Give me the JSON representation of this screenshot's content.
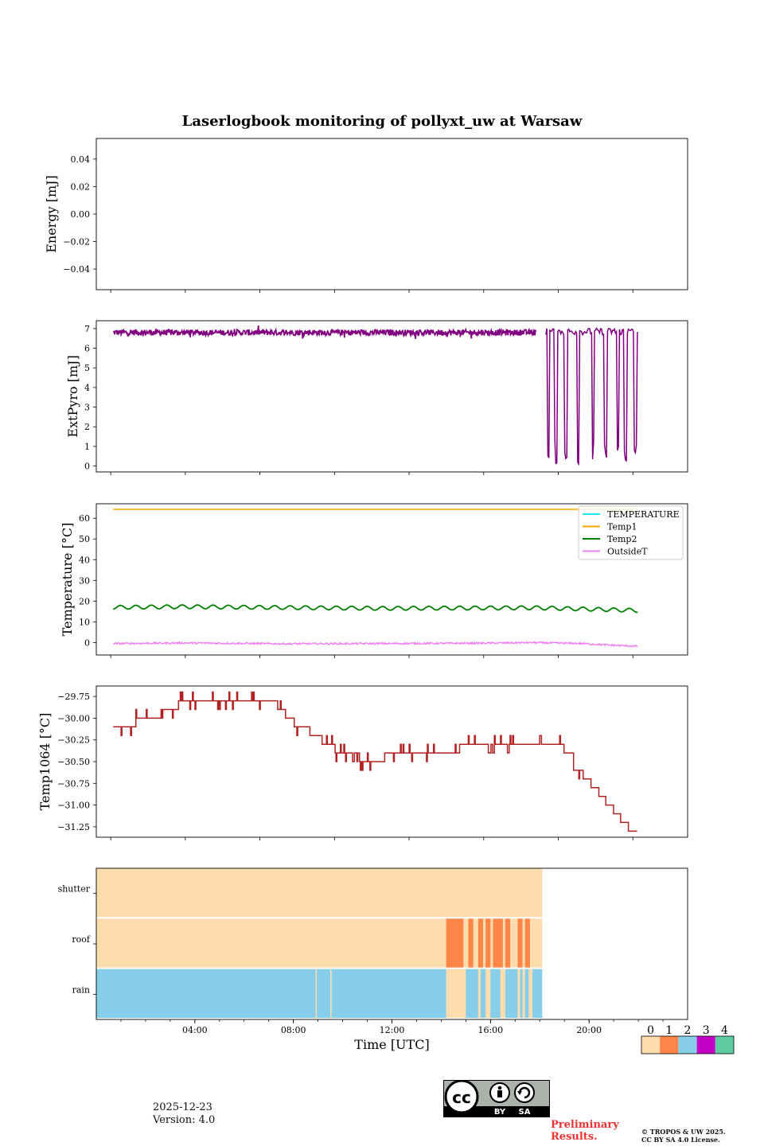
{
  "title": "Laserlogbook monitoring of pollyxt_uw at Warsaw",
  "chart_data": [
    {
      "type": "line",
      "name": "energy",
      "ylabel": "Energy [mJ]",
      "ylim": [
        -0.055,
        0.055
      ],
      "yticks": [
        0.04,
        0.02,
        0.0,
        -0.02,
        -0.04
      ],
      "ytick_labels": [
        "0.04",
        "0.02",
        "0.00",
        "−0.02",
        "−0.04"
      ],
      "series": []
    },
    {
      "type": "line",
      "name": "extpyro",
      "ylabel": "ExtPyro [mJ]",
      "ylim": [
        -0.3,
        7.4
      ],
      "yticks": [
        7,
        6,
        5,
        4,
        3,
        2,
        1,
        0
      ],
      "ytick_labels": [
        "7",
        "6",
        "5",
        "4",
        "3",
        "2",
        "1",
        "0"
      ],
      "series": [
        {
          "name": "ExtPyro",
          "color": "#800080",
          "x": [
            1.1,
            2.0,
            3.0,
            4.0,
            5.0,
            6.0,
            7.0,
            8.0,
            9.0,
            10.0,
            11.0,
            12.0,
            13.0,
            14.0,
            15.0,
            16.0,
            17.0,
            18.1
          ],
          "y": [
            6.8,
            6.8,
            6.8,
            6.8,
            6.7,
            6.8,
            6.8,
            6.8,
            6.8,
            6.8,
            6.8,
            6.8,
            6.8,
            6.8,
            6.8,
            6.8,
            6.8,
            6.8
          ],
          "dropouts": [
            18.6,
            18.9,
            19.3,
            19.8,
            20.4,
            20.9,
            21.4,
            21.7,
            22.1
          ],
          "x_end": 22.2
        }
      ]
    },
    {
      "type": "line",
      "name": "temperature",
      "ylabel": "Temperature [°C]",
      "ylim": [
        -6,
        67
      ],
      "yticks": [
        60,
        50,
        40,
        30,
        20,
        10,
        0
      ],
      "ytick_labels": [
        "60",
        "50",
        "40",
        "30",
        "20",
        "10",
        "0"
      ],
      "legend": "top-right",
      "series": [
        {
          "name": "TEMPERATURE",
          "color": "#22e5f0",
          "x": [],
          "y": []
        },
        {
          "name": "Temp1",
          "color": "#ffa500",
          "x": [
            1.1,
            22.2
          ],
          "y": [
            64.3,
            64.3
          ]
        },
        {
          "name": "Temp2",
          "color": "#008000",
          "x": [
            1.1,
            4.0,
            8.0,
            12.0,
            16.0,
            18.0,
            20.0,
            22.2
          ],
          "y": [
            17.0,
            17.3,
            16.9,
            16.5,
            16.7,
            16.8,
            16.2,
            15.5
          ]
        },
        {
          "name": "OutsideT",
          "color": "#ee82ee",
          "x": [
            1.1,
            4.0,
            8.0,
            12.0,
            16.0,
            18.0,
            20.0,
            21.0,
            22.2
          ],
          "y": [
            -0.5,
            -0.2,
            -0.6,
            -0.5,
            -0.3,
            0.0,
            -0.5,
            -1.2,
            -1.8
          ]
        }
      ]
    },
    {
      "type": "line",
      "name": "temp1064",
      "ylabel": "Temp1064 [°C]",
      "ylim": [
        -31.37,
        -29.63
      ],
      "yticks": [
        -29.75,
        -30.0,
        -30.25,
        -30.5,
        -30.75,
        -31.0,
        -31.25
      ],
      "ytick_labels": [
        "−29.75",
        "−30.00",
        "−30.25",
        "−30.50",
        "−30.75",
        "−31.00",
        "−31.25"
      ],
      "series": [
        {
          "name": "Temp1064",
          "color": "#b22222",
          "x": [
            1.1,
            1.5,
            2.0,
            2.5,
            3.0,
            3.7,
            4.5,
            5.5,
            6.5,
            7.3,
            7.7,
            8.0,
            8.4,
            9.0,
            9.5,
            10.0,
            11.0,
            12.0,
            13.0,
            14.0,
            15.0,
            15.8,
            16.5,
            17.5,
            18.5,
            19.2,
            19.6,
            20.0,
            20.3,
            20.6,
            20.9,
            21.2,
            21.5,
            21.8,
            22.2
          ],
          "y": [
            -30.1,
            -30.1,
            -30.0,
            -30.0,
            -29.9,
            -29.8,
            -29.8,
            -29.8,
            -29.8,
            -29.8,
            -29.9,
            -30.0,
            -30.1,
            -30.2,
            -30.3,
            -30.4,
            -30.5,
            -30.4,
            -30.4,
            -30.4,
            -30.3,
            -30.3,
            -30.3,
            -30.3,
            -30.3,
            -30.4,
            -30.6,
            -30.7,
            -30.8,
            -30.9,
            -31.0,
            -31.1,
            -31.2,
            -31.3,
            -31.3
          ]
        }
      ]
    },
    {
      "type": "heatmap",
      "name": "status",
      "xlabel": "Time [UTC]",
      "xticks": [
        4,
        8,
        12,
        16,
        20
      ],
      "xtick_labels": [
        "04:00",
        "08:00",
        "12:00",
        "16:00",
        "20:00"
      ],
      "xlim": [
        0,
        24
      ],
      "rows": [
        "shutter",
        "roof",
        "rain"
      ],
      "data_end": 18.1,
      "row_base": [
        0,
        0,
        2
      ],
      "segments": {
        "shutter": [],
        "roof": [
          [
            14.2,
            14.9,
            1
          ],
          [
            15.1,
            15.3,
            1
          ],
          [
            15.5,
            15.7,
            1
          ],
          [
            15.8,
            16.0,
            1
          ],
          [
            16.1,
            16.5,
            1
          ],
          [
            16.6,
            16.8,
            1
          ],
          [
            17.1,
            17.3,
            1
          ],
          [
            17.4,
            17.6,
            1
          ]
        ],
        "rain": [
          [
            8.9,
            8.95,
            0
          ],
          [
            9.5,
            9.55,
            0
          ],
          [
            14.2,
            15.0,
            0
          ],
          [
            15.5,
            15.6,
            0
          ],
          [
            15.8,
            16.0,
            0
          ],
          [
            16.4,
            16.6,
            0
          ],
          [
            17.1,
            17.2,
            0
          ],
          [
            17.3,
            17.4,
            0
          ],
          [
            17.55,
            17.7,
            0
          ]
        ]
      },
      "colorbar": {
        "labels": [
          "0",
          "1",
          "2",
          "3",
          "4"
        ],
        "colors": [
          "#fdddad",
          "#ff8548",
          "#87ceeb",
          "#c400c4",
          "#60cba0"
        ]
      }
    }
  ],
  "footer": {
    "date": "2025-12-23",
    "version": "Version: 4.0",
    "preliminary": "Preliminary Results.",
    "copyright_line1": "© TROPOS & UW 2025.",
    "copyright_line2": "CC BY SA 4.0 License.",
    "license_badge": [
      "BY",
      "SA"
    ]
  }
}
